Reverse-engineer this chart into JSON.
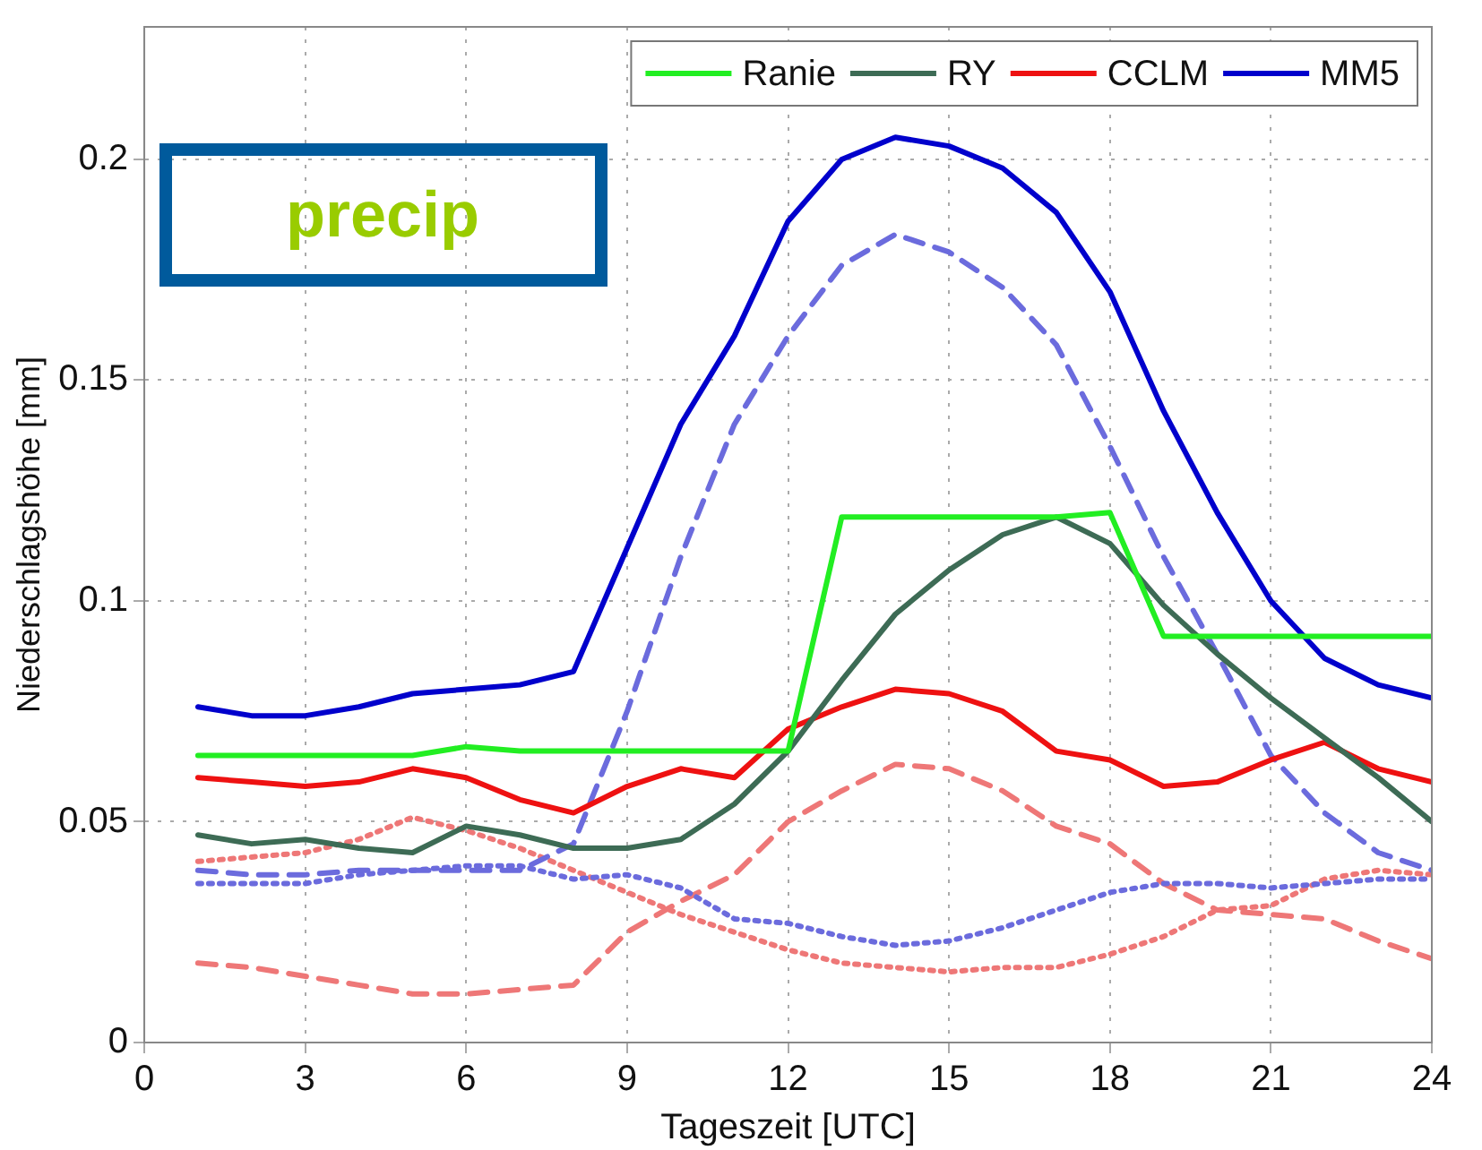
{
  "chart_data": {
    "type": "line",
    "xlabel": "Tageszeit [UTC]",
    "ylabel": "Niederschlagshöhe [mm]",
    "x": [
      1,
      2,
      3,
      4,
      5,
      6,
      7,
      8,
      9,
      10,
      11,
      12,
      13,
      14,
      15,
      16,
      17,
      18,
      19,
      20,
      21,
      22,
      23,
      24
    ],
    "xlim": [
      0,
      24
    ],
    "xticks": [
      0,
      3,
      6,
      9,
      12,
      15,
      18,
      21,
      24
    ],
    "ylim": [
      0,
      0.23
    ],
    "yticks": [
      0,
      0.05,
      0.1,
      0.15,
      0.2
    ],
    "grid": true,
    "legend": "top right",
    "marker": "none",
    "annotations": [
      "precip"
    ],
    "series": [
      {
        "name": "Ranie",
        "color": "#22ee22",
        "line_style": "solid",
        "values": [
          0.065,
          0.065,
          0.065,
          0.065,
          0.065,
          0.067,
          0.066,
          0.066,
          0.066,
          0.066,
          0.066,
          0.066,
          0.119,
          0.119,
          0.119,
          0.119,
          0.119,
          0.12,
          0.092,
          0.092,
          0.092,
          0.092,
          0.092,
          0.092
        ]
      },
      {
        "name": "RY",
        "color": "#3d6b55",
        "line_style": "solid",
        "values": [
          0.047,
          0.045,
          0.046,
          0.044,
          0.043,
          0.049,
          0.047,
          0.044,
          0.044,
          0.046,
          0.054,
          0.066,
          0.082,
          0.097,
          0.107,
          0.115,
          0.119,
          0.113,
          0.099,
          0.088,
          0.078,
          0.069,
          0.06,
          0.05
        ]
      },
      {
        "name": "CCLM",
        "color": "#ee1111",
        "line_style": "solid",
        "values": [
          0.06,
          0.059,
          0.058,
          0.059,
          0.062,
          0.06,
          0.055,
          0.052,
          0.058,
          0.062,
          0.06,
          0.071,
          0.076,
          0.08,
          0.079,
          0.075,
          0.066,
          0.064,
          0.058,
          0.059,
          0.064,
          0.068,
          0.062,
          0.059
        ]
      },
      {
        "name": "MM5",
        "color": "#0000cc",
        "line_style": "solid",
        "values": [
          0.076,
          0.074,
          0.074,
          0.076,
          0.079,
          0.08,
          0.081,
          0.084,
          0.112,
          0.14,
          0.16,
          0.186,
          0.2,
          0.205,
          0.203,
          0.198,
          0.188,
          0.17,
          0.143,
          0.12,
          0.1,
          0.087,
          0.081,
          0.078
        ]
      },
      {
        "color": "#6b6bdd",
        "line_style": "dashed",
        "values": [
          0.039,
          0.038,
          0.038,
          0.039,
          0.039,
          0.039,
          0.039,
          0.045,
          0.075,
          0.11,
          0.14,
          0.16,
          0.176,
          0.183,
          0.179,
          0.171,
          0.158,
          0.135,
          0.11,
          0.088,
          0.065,
          0.052,
          0.043,
          0.039
        ]
      },
      {
        "color": "#6b6bdd",
        "line_style": "dotted",
        "values": [
          0.036,
          0.036,
          0.036,
          0.038,
          0.039,
          0.04,
          0.04,
          0.037,
          0.038,
          0.035,
          0.028,
          0.027,
          0.024,
          0.022,
          0.023,
          0.026,
          0.03,
          0.034,
          0.036,
          0.036,
          0.035,
          0.036,
          0.037,
          0.037
        ]
      },
      {
        "color": "#ee7777",
        "line_style": "dashed",
        "values": [
          0.018,
          0.017,
          0.015,
          0.013,
          0.011,
          0.011,
          0.012,
          0.013,
          0.025,
          0.032,
          0.038,
          0.05,
          0.057,
          0.063,
          0.062,
          0.057,
          0.049,
          0.045,
          0.036,
          0.03,
          0.029,
          0.028,
          0.023,
          0.019
        ]
      },
      {
        "color": "#ee7777",
        "line_style": "dotted",
        "values": [
          0.041,
          0.042,
          0.043,
          0.046,
          0.051,
          0.048,
          0.044,
          0.039,
          0.034,
          0.029,
          0.025,
          0.021,
          0.018,
          0.017,
          0.016,
          0.017,
          0.017,
          0.02,
          0.024,
          0.03,
          0.031,
          0.037,
          0.039,
          0.038
        ]
      }
    ]
  }
}
